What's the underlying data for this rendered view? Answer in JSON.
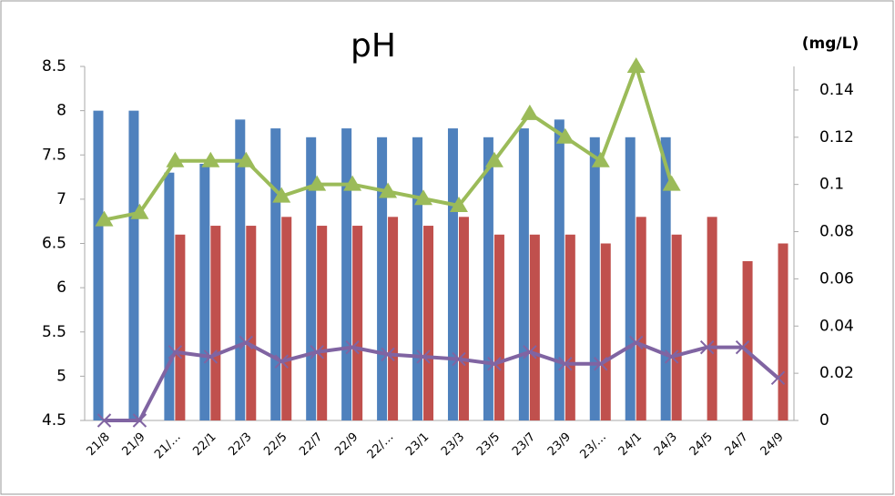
{
  "chart_data": {
    "type": "bar",
    "title": "pH",
    "y2_label": "(mg/L)",
    "categories": [
      "21/8",
      "21/9",
      "21/…",
      "22/1",
      "22/3",
      "22/5",
      "22/7",
      "22/9",
      "22/…",
      "23/1",
      "23/3",
      "23/5",
      "23/7",
      "23/9",
      "23/…",
      "24/1",
      "24/3",
      "24/5",
      "24/7",
      "24/9"
    ],
    "ylim": [
      4.5,
      8.5
    ],
    "yticks": [
      4.5,
      5,
      5.5,
      6,
      6.5,
      7,
      7.5,
      8,
      8.5
    ],
    "y2lim": [
      0,
      0.15
    ],
    "y2ticks": [
      0,
      0.02,
      0.04,
      0.06,
      0.08,
      0.1,
      0.12,
      0.14
    ],
    "series": [
      {
        "type": "bar",
        "color": "#4f81bd",
        "values": [
          8,
          8,
          7.3,
          7.4,
          7.9,
          7.8,
          7.7,
          7.8,
          7.7,
          7.7,
          7.8,
          7.7,
          7.8,
          7.9,
          7.7,
          7.7,
          7.7,
          null,
          null,
          null
        ]
      },
      {
        "type": "bar",
        "color": "#c0504d",
        "values": [
          null,
          null,
          6.6,
          6.7,
          6.7,
          6.8,
          6.7,
          6.7,
          6.8,
          6.7,
          6.8,
          6.6,
          6.6,
          6.6,
          6.5,
          6.8,
          6.6,
          6.8,
          6.3,
          6.5
        ]
      },
      {
        "type": "line",
        "axis": "y2",
        "marker": "triangle",
        "color": "#9bbb59",
        "values": [
          0.085,
          0.088,
          0.11,
          0.11,
          0.11,
          0.095,
          0.1,
          0.1,
          0.097,
          0.094,
          0.091,
          0.11,
          0.13,
          0.12,
          0.11,
          0.15,
          0.1,
          null,
          null,
          null
        ]
      },
      {
        "type": "line",
        "axis": "y2",
        "marker": "cross",
        "color": "#8064a2",
        "values": [
          0,
          0,
          0.029,
          0.027,
          0.033,
          0.025,
          0.029,
          0.031,
          0.028,
          0.027,
          0.026,
          0.024,
          0.029,
          0.024,
          0.024,
          0.033,
          0.027,
          0.031,
          0.031,
          0.018
        ]
      }
    ]
  }
}
